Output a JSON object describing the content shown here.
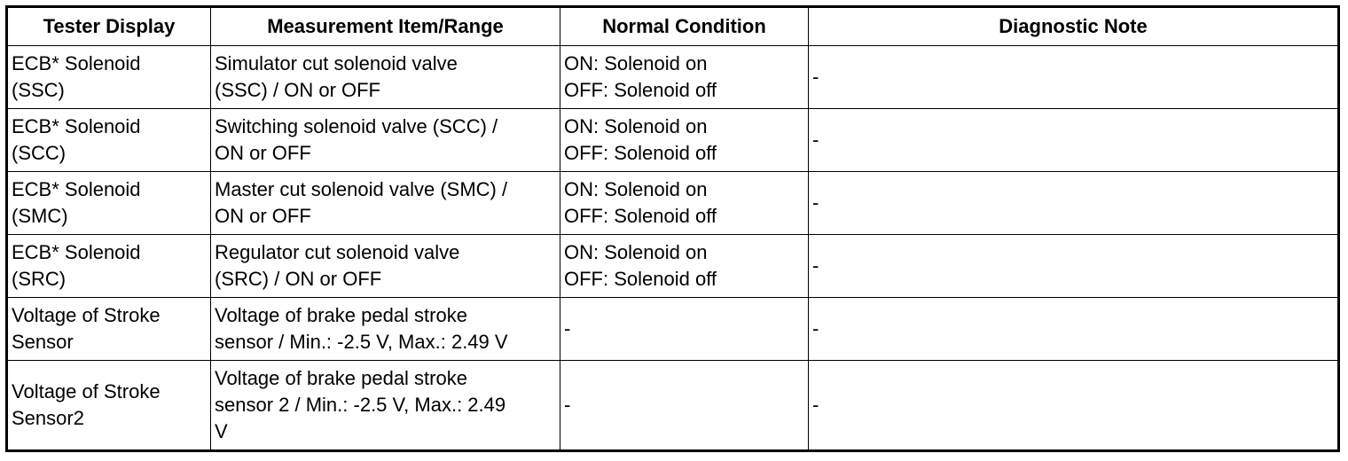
{
  "table": {
    "header": [
      "Tester Display",
      "Measurement Item/Range",
      "Normal Condition",
      "Diagnostic Note"
    ],
    "rows": [
      [
        [
          "ECB* Solenoid",
          "(SSC)"
        ],
        [
          "Simulator cut solenoid valve",
          "(SSC) / ON or OFF"
        ],
        [
          "ON: Solenoid on",
          "OFF: Solenoid off"
        ],
        [
          "-"
        ]
      ],
      [
        [
          "ECB* Solenoid",
          "(SCC)"
        ],
        [
          "Switching solenoid valve (SCC) /",
          "ON or OFF"
        ],
        [
          "ON: Solenoid on",
          "OFF: Solenoid off"
        ],
        [
          "-"
        ]
      ],
      [
        [
          "ECB* Solenoid",
          "(SMC)"
        ],
        [
          "Master cut solenoid valve (SMC) /",
          "ON or OFF"
        ],
        [
          "ON: Solenoid on",
          "OFF: Solenoid off"
        ],
        [
          "-"
        ]
      ],
      [
        [
          "ECB* Solenoid",
          "(SRC)"
        ],
        [
          "Regulator cut solenoid valve",
          "(SRC) / ON or OFF"
        ],
        [
          "ON: Solenoid on",
          "OFF: Solenoid off"
        ],
        [
          "-"
        ]
      ],
      [
        [
          "Voltage of Stroke",
          "Sensor"
        ],
        [
          "Voltage of brake pedal stroke",
          "sensor / Min.: -2.5 V, Max.: 2.49 V"
        ],
        [
          "-"
        ],
        [
          "-"
        ]
      ],
      [
        [
          "Voltage of Stroke",
          "Sensor2"
        ],
        [
          "Voltage of brake pedal stroke",
          "sensor 2 / Min.: -2.5 V, Max.: 2.49",
          "V"
        ],
        [
          "-"
        ],
        [
          "-"
        ]
      ]
    ]
  }
}
